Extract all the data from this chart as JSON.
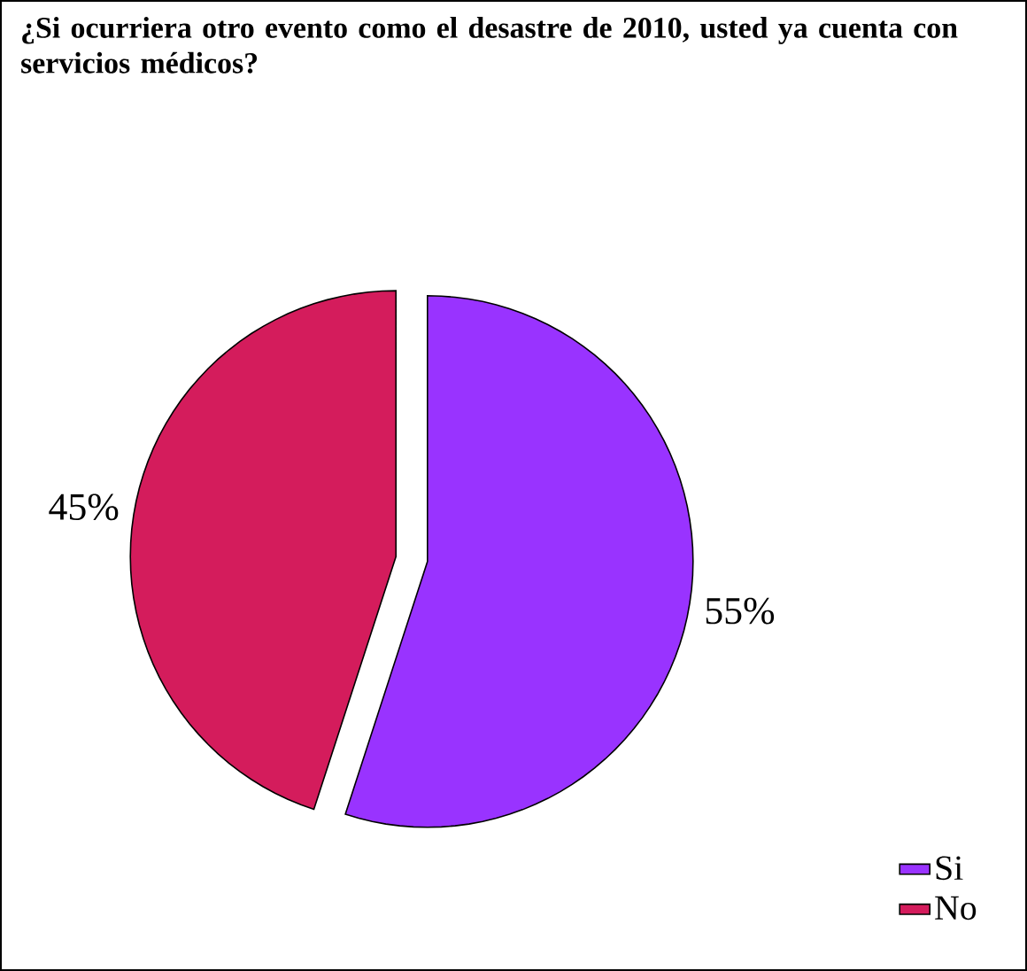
{
  "chart_data": {
    "type": "pie",
    "title": "¿Si ocurriera otro evento como el desastre de 2010, usted ya cuenta con servicios médicos?",
    "categories": [
      "Si",
      "No"
    ],
    "values": [
      55,
      45
    ],
    "value_labels": [
      "55%",
      "45%"
    ],
    "colors": [
      "#9933ff",
      "#d41c5c"
    ],
    "legend": "bottom right"
  }
}
